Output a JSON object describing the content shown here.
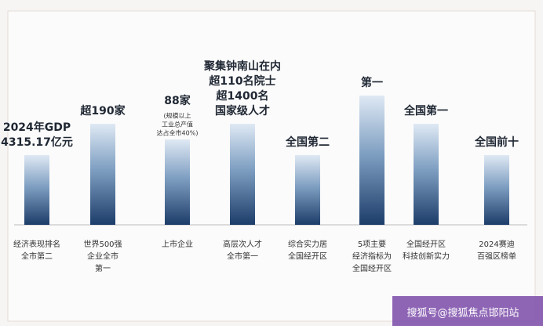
{
  "columns": [
    {
      "top": [
        "2024年GDP",
        "4315.17亿元"
      ],
      "bottom": [
        "经济表现排名",
        "全市第二"
      ]
    },
    {
      "top": [
        "超190家"
      ],
      "bottom": [
        "世界500强",
        "企业全市",
        "第一"
      ]
    },
    {
      "top": [
        "88家"
      ],
      "note": [
        "(规模以上",
        "工业总产值",
        "达占全市40%)"
      ],
      "bottom": [
        "上市企业"
      ]
    },
    {
      "top": [
        "聚集钟南山在内",
        "超110名院士",
        "超1400名",
        "国家级人才"
      ],
      "bottom": [
        "高层次人才",
        "全市第一"
      ]
    },
    {
      "top": [
        "全国第二"
      ],
      "bottom": [
        "综合实力居",
        "全国经开区"
      ]
    },
    {
      "top": [
        "第一"
      ],
      "bottom": [
        "5项主要",
        "经济指标为",
        "全国经开区"
      ]
    },
    {
      "top": [
        "全国第一"
      ],
      "bottom": [
        "全国经开区",
        "科技创新实力"
      ]
    },
    {
      "top": [
        "全国前十"
      ],
      "bottom": [
        "2024赛迪",
        "百强区榜单"
      ]
    }
  ],
  "watermark": "搜狐号@搜狐焦点邯阳站"
}
